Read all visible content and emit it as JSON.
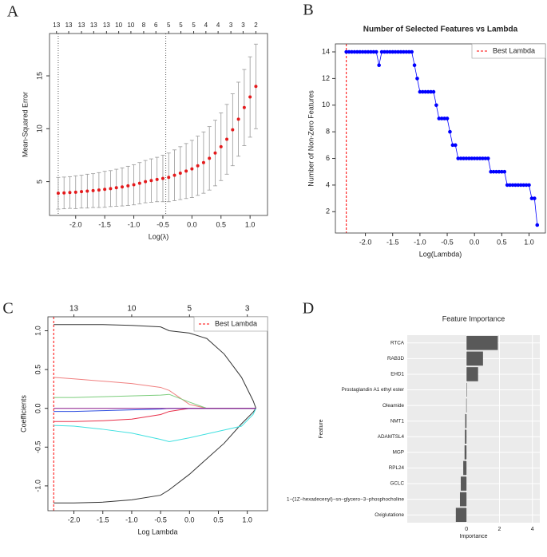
{
  "chart_data": [
    {
      "type": "errorbar",
      "panel_label": "A",
      "xlabel": "Log(λ)",
      "ylabel": "Mean-Squared Error",
      "x": [
        -2.3,
        -2.2,
        -2.1,
        -2.0,
        -1.9,
        -1.8,
        -1.7,
        -1.6,
        -1.5,
        -1.4,
        -1.3,
        -1.2,
        -1.1,
        -1.0,
        -0.9,
        -0.8,
        -0.7,
        -0.6,
        -0.5,
        -0.4,
        -0.3,
        -0.2,
        -0.1,
        0.0,
        0.1,
        0.2,
        0.3,
        0.4,
        0.5,
        0.6,
        0.7,
        0.8,
        0.9,
        1.0,
        1.1
      ],
      "values": [
        3.9,
        3.93,
        3.97,
        4.0,
        4.05,
        4.1,
        4.15,
        4.2,
        4.27,
        4.34,
        4.42,
        4.5,
        4.6,
        4.7,
        4.85,
        5.0,
        5.1,
        5.2,
        5.3,
        5.4,
        5.6,
        5.8,
        6.0,
        6.2,
        6.5,
        6.8,
        7.2,
        7.7,
        8.3,
        9.0,
        9.9,
        10.9,
        12.0,
        13.0,
        14.0
      ],
      "errors": [
        1.5,
        1.5,
        1.5,
        1.55,
        1.55,
        1.6,
        1.6,
        1.65,
        1.7,
        1.7,
        1.75,
        1.8,
        1.85,
        1.9,
        1.95,
        2.0,
        2.05,
        2.1,
        2.2,
        2.3,
        2.4,
        2.5,
        2.6,
        2.7,
        2.8,
        2.9,
        3.0,
        3.1,
        3.2,
        3.3,
        3.4,
        3.5,
        3.6,
        3.8,
        4.0
      ],
      "color": "#e41a1c",
      "error_color": "#999999",
      "xlim": [
        -2.45,
        1.3
      ],
      "ylim": [
        1.8,
        19
      ],
      "xticks": [
        {
          "value": -2.0,
          "label": "-2.0"
        },
        {
          "value": -1.5,
          "label": "-1.5"
        },
        {
          "value": -1.0,
          "label": "-1.0"
        },
        {
          "value": -0.5,
          "label": "-0.5"
        },
        {
          "value": 0.0,
          "label": "0.0"
        },
        {
          "value": 0.5,
          "label": "0.5"
        },
        {
          "value": 1.0,
          "label": "1.0"
        }
      ],
      "yticks": [
        5,
        10,
        15
      ],
      "top_ticks": [
        -2.33,
        -2.12,
        -1.9,
        -1.69,
        -1.47,
        -1.26,
        -1.05,
        -0.83,
        -0.62,
        -0.4,
        -0.19,
        0.03,
        0.24,
        0.45,
        0.67,
        0.88,
        1.1
      ],
      "top_counts": [
        13,
        13,
        13,
        13,
        13,
        10,
        10,
        8,
        6,
        5,
        5,
        5,
        4,
        4,
        3,
        3,
        2
      ],
      "vlines": [
        -2.3,
        -0.45
      ]
    },
    {
      "type": "line",
      "panel_label": "B",
      "title": "Number of Selected Features vs Lambda",
      "xlabel": "Log(Lambda)",
      "ylabel": "Number of Non-Zero Features",
      "x": [
        -2.35,
        -2.3,
        -2.25,
        -2.2,
        -2.15,
        -2.1,
        -2.05,
        -2.0,
        -1.95,
        -1.9,
        -1.85,
        -1.8,
        -1.75,
        -1.7,
        -1.65,
        -1.6,
        -1.55,
        -1.5,
        -1.45,
        -1.4,
        -1.35,
        -1.3,
        -1.25,
        -1.2,
        -1.15,
        -1.1,
        -1.05,
        -1.0,
        -0.95,
        -0.9,
        -0.85,
        -0.8,
        -0.75,
        -0.7,
        -0.65,
        -0.6,
        -0.55,
        -0.5,
        -0.45,
        -0.4,
        -0.35,
        -0.3,
        -0.25,
        -0.2,
        -0.15,
        -0.1,
        -0.05,
        0,
        0.05,
        0.1,
        0.15,
        0.2,
        0.25,
        0.3,
        0.35,
        0.4,
        0.45,
        0.5,
        0.55,
        0.6,
        0.65,
        0.7,
        0.75,
        0.8,
        0.85,
        0.9,
        0.95,
        1.0,
        1.05,
        1.1,
        1.15
      ],
      "values": [
        14,
        14,
        14,
        14,
        14,
        14,
        14,
        14,
        14,
        14,
        14,
        14,
        13,
        14,
        14,
        14,
        14,
        14,
        14,
        14,
        14,
        14,
        14,
        14,
        14,
        13,
        12,
        11,
        11,
        11,
        11,
        11,
        11,
        10,
        9,
        9,
        9,
        9,
        8,
        7,
        7,
        6,
        6,
        6,
        6,
        6,
        6,
        6,
        6,
        6,
        6,
        6,
        6,
        5,
        5,
        5,
        5,
        5,
        5,
        4,
        4,
        4,
        4,
        4,
        4,
        4,
        4,
        4,
        3,
        3,
        1
      ],
      "color": "#0000ff",
      "markers": true,
      "best_lambda": -2.35,
      "best_lambda_color": "#ff0000",
      "legend_label": "Best Lambda",
      "legend": "upper right",
      "xlim": [
        -2.55,
        1.3
      ],
      "ylim": [
        0.4,
        14.6
      ],
      "xticks": [
        {
          "value": -2.0,
          "label": "-2.0"
        },
        {
          "value": -1.5,
          "label": "-1.5"
        },
        {
          "value": -1.0,
          "label": "-1.0"
        },
        {
          "value": -0.5,
          "label": "-0.5"
        },
        {
          "value": 0.0,
          "label": "0.0"
        },
        {
          "value": 0.5,
          "label": "0.5"
        },
        {
          "value": 1.0,
          "label": "1.0"
        }
      ],
      "yticks": [
        2,
        4,
        6,
        8,
        10,
        12,
        14
      ]
    },
    {
      "type": "line",
      "panel_label": "C",
      "xlabel": "Log Lambda",
      "ylabel": "Coefficients",
      "x": [
        -2.35,
        -2.0,
        -1.5,
        -1.0,
        -0.5,
        -0.35,
        0.0,
        0.3,
        0.6,
        0.9,
        1.1,
        1.15
      ],
      "series": [
        {
          "color": "#333333",
          "values": [
            1.08,
            1.08,
            1.08,
            1.07,
            1.05,
            1.0,
            0.97,
            0.9,
            0.7,
            0.4,
            0.1,
            0
          ]
        },
        {
          "color": "#333333",
          "values": [
            -1.22,
            -1.22,
            -1.21,
            -1.18,
            -1.12,
            -1.05,
            -0.85,
            -0.65,
            -0.45,
            -0.2,
            -0.05,
            0
          ]
        },
        {
          "color": "#f08080",
          "values": [
            0.4,
            0.38,
            0.35,
            0.32,
            0.27,
            0.23,
            0.05,
            0,
            0,
            0,
            0,
            0
          ]
        },
        {
          "color": "#7ccd7c",
          "values": [
            0.14,
            0.14,
            0.15,
            0.16,
            0.17,
            0.18,
            0.08,
            0,
            0,
            0,
            0,
            0
          ]
        },
        {
          "color": "#40e0e0",
          "values": [
            -0.22,
            -0.23,
            -0.27,
            -0.32,
            -0.4,
            -0.43,
            -0.38,
            -0.33,
            -0.28,
            -0.23,
            -0.08,
            0
          ]
        },
        {
          "color": "#e8304a",
          "values": [
            -0.17,
            -0.17,
            -0.16,
            -0.14,
            -0.08,
            -0.04,
            0,
            0,
            0,
            0,
            0,
            0
          ]
        },
        {
          "color": "#3050e0",
          "values": [
            -0.04,
            -0.04,
            -0.03,
            -0.02,
            -0.01,
            0,
            0,
            0,
            0,
            0,
            0,
            0
          ]
        },
        {
          "color": "#8b1a8b",
          "values": [
            0,
            0,
            0,
            0,
            0,
            0,
            0,
            0,
            0,
            0,
            0,
            0
          ]
        }
      ],
      "best_lambda": -2.35,
      "best_lambda_color": "#ff0000",
      "legend_label": "Best Lambda",
      "legend": "upper right",
      "xlim": [
        -2.45,
        1.35
      ],
      "ylim": [
        -1.32,
        1.18
      ],
      "xticks": [
        {
          "value": -2.0,
          "label": "-2.0"
        },
        {
          "value": -1.5,
          "label": "-1.5"
        },
        {
          "value": -1.0,
          "label": "-1.0"
        },
        {
          "value": -0.5,
          "label": "-0.5"
        },
        {
          "value": 0.0,
          "label": "0.0"
        },
        {
          "value": 0.5,
          "label": "0.5"
        },
        {
          "value": 1.0,
          "label": "1.0"
        }
      ],
      "yticks": [
        {
          "value": -1.0,
          "label": "-1.0"
        },
        {
          "value": -0.5,
          "label": "-0.5"
        },
        {
          "value": 0.0,
          "label": "0.0"
        },
        {
          "value": 0.5,
          "label": "0.5"
        },
        {
          "value": 1.0,
          "label": "1.0"
        }
      ],
      "top_ticks": [
        -2,
        -1,
        0,
        1
      ],
      "top_counts": [
        13,
        10,
        5,
        3
      ]
    },
    {
      "type": "bar",
      "panel_label": "D",
      "title": "Feature Importance",
      "xlabel": "Importance",
      "ylabel": "Feature",
      "horizontal": true,
      "categories": [
        "RTCA",
        "RAB3D",
        "EHD1",
        "Prostaglandin A1 ethyl ester",
        "Oleamide",
        "NMT1",
        "ADAMTSL4",
        "MGP",
        "RPL24",
        "GCLC",
        "1−(1Z−hexadecenyl)−sn−glycero−3−phosphocholine",
        "Oxiglutatione"
      ],
      "values": [
        1.9,
        1.0,
        0.7,
        0.02,
        -0.02,
        -0.08,
        -0.1,
        -0.12,
        -0.2,
        -0.35,
        -0.4,
        -0.65
      ],
      "color": "#595959",
      "panel_bg": "#ebebeb",
      "grid": true,
      "xlim": [
        -3.6,
        4.45
      ],
      "xticks": [
        0,
        2,
        4
      ]
    }
  ]
}
